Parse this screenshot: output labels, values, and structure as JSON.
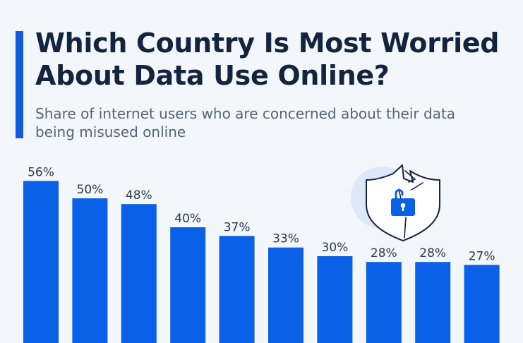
{
  "header": {
    "title": "Which Country Is Most Worried About Data Use Online?",
    "subtitle": "Share of internet users who are concerned about their data being misused online"
  },
  "colors": {
    "accent": "#0f5bdc",
    "bar": "#0a60e6",
    "title": "#13243f",
    "subtitle": "#56657a",
    "background": "#f3f6fa"
  },
  "illustration": {
    "icon": "shield-unlocked-padlock-icon"
  },
  "chart_data": {
    "type": "bar",
    "categories": [],
    "values": [
      56,
      50,
      48,
      40,
      37,
      33,
      30,
      28,
      28,
      27
    ],
    "labels": [
      "56%",
      "50%",
      "48%",
      "40%",
      "37%",
      "33%",
      "30%",
      "28%",
      "28%",
      "27%"
    ],
    "title": "Which Country Is Most Worried About Data Use Online?",
    "subtitle": "Share of internet users who are concerned about their data being misused online",
    "xlabel": "",
    "ylabel": "",
    "unit": "%",
    "ylim": [
      0,
      60
    ],
    "grid": false,
    "legend": "none"
  }
}
